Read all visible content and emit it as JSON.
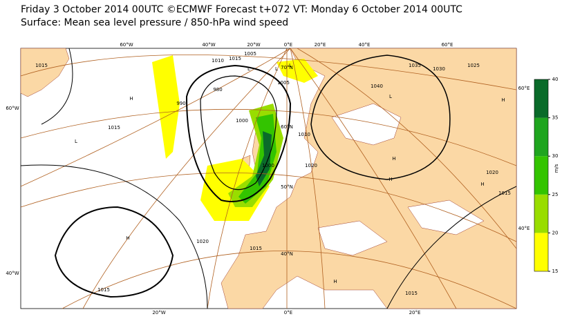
{
  "header": {
    "lines": [
      "Friday 3 October 2014 00UTC ©ECMWF Forecast t+072 VT: Monday 6 October 2014 00UTC",
      "Surface: Mean sea level pressure / 850-hPa wind speed"
    ]
  },
  "map": {
    "graticule_labels": [
      "60°W",
      "40°W",
      "20°W",
      "0°E",
      "20°E",
      "40°E",
      "60°E",
      "20°W",
      "0°E",
      "20°E",
      "60°W",
      "40°W",
      "60°E",
      "40°E",
      "70°N",
      "60°N",
      "50°N",
      "40°N"
    ],
    "isobar_labels": [
      "1015",
      "1015",
      "1015",
      "1020",
      "1005",
      "1010",
      "1015",
      "990",
      "980",
      "1000",
      "1000",
      "1005",
      "1010",
      "1020",
      "1025",
      "1030",
      "1035",
      "1040",
      "1020",
      "1015",
      "1015",
      "1015"
    ],
    "pressure_centres": [
      "H",
      "H",
      "H",
      "L",
      "L",
      "L",
      "L",
      "H",
      "H",
      "H",
      "H",
      "L"
    ]
  },
  "colorbar": {
    "unit": "m/s",
    "ticks": [
      15,
      20,
      25,
      30,
      35,
      40
    ],
    "colors": [
      "#ffff00",
      "#99dd00",
      "#33c400",
      "#1fa51f",
      "#0a6b2a"
    ]
  }
}
